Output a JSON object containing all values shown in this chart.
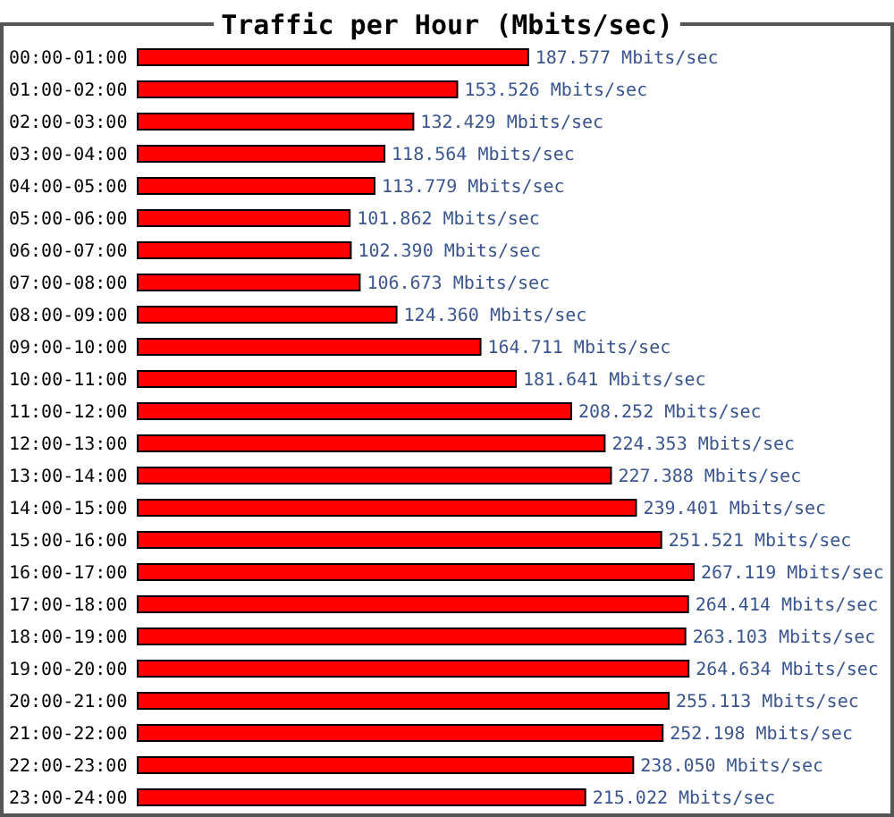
{
  "chart_data": {
    "type": "bar",
    "orientation": "horizontal",
    "title": "Traffic per Hour (Mbits/sec)",
    "categories": [
      "00:00-01:00",
      "01:00-02:00",
      "02:00-03:00",
      "03:00-04:00",
      "04:00-05:00",
      "05:00-06:00",
      "06:00-07:00",
      "07:00-08:00",
      "08:00-09:00",
      "09:00-10:00",
      "10:00-11:00",
      "11:00-12:00",
      "12:00-13:00",
      "13:00-14:00",
      "14:00-15:00",
      "15:00-16:00",
      "16:00-17:00",
      "17:00-18:00",
      "18:00-19:00",
      "19:00-20:00",
      "20:00-21:00",
      "21:00-22:00",
      "22:00-23:00",
      "23:00-24:00"
    ],
    "values": [
      187.577,
      153.526,
      132.429,
      118.564,
      113.779,
      101.862,
      102.39,
      106.673,
      124.36,
      164.711,
      181.641,
      208.252,
      224.353,
      227.388,
      239.401,
      251.521,
      267.119,
      264.414,
      263.103,
      264.634,
      255.113,
      252.198,
      238.05,
      215.022
    ],
    "value_labels": [
      "187.577 Mbits/sec",
      "153.526 Mbits/sec",
      "132.429 Mbits/sec",
      "118.564 Mbits/sec",
      "113.779 Mbits/sec",
      "101.862 Mbits/sec",
      "102.390 Mbits/sec",
      "106.673 Mbits/sec",
      "124.360 Mbits/sec",
      "164.711 Mbits/sec",
      "181.641 Mbits/sec",
      "208.252 Mbits/sec",
      "224.353 Mbits/sec",
      "227.388 Mbits/sec",
      "239.401 Mbits/sec",
      "251.521 Mbits/sec",
      "267.119 Mbits/sec",
      "264.414 Mbits/sec",
      "263.103 Mbits/sec",
      "264.634 Mbits/sec",
      "255.113 Mbits/sec",
      "252.198 Mbits/sec",
      "238.050 Mbits/sec",
      "215.022 Mbits/sec"
    ],
    "color": "#ff0000"
  }
}
